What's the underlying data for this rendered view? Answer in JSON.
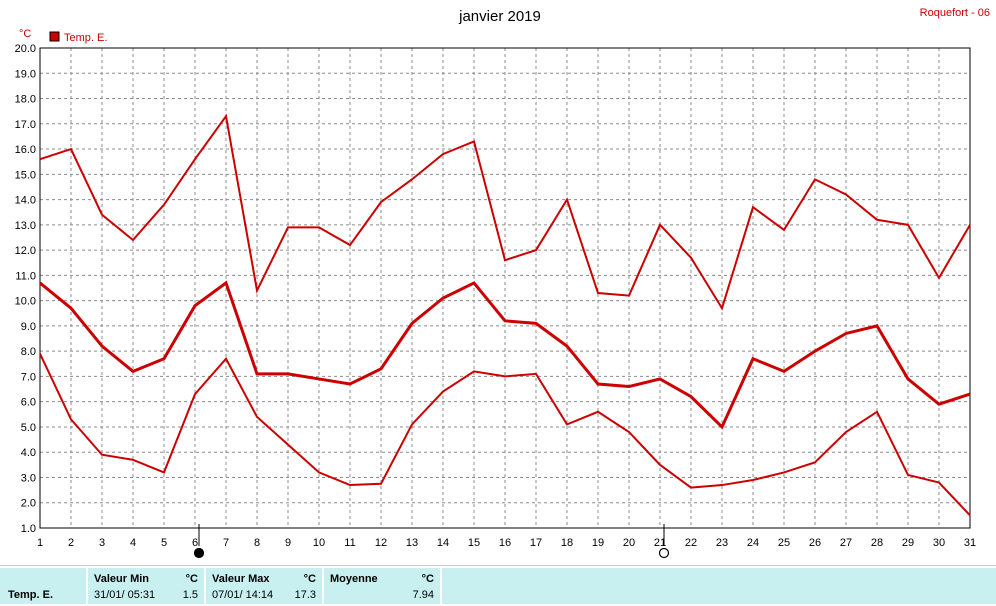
{
  "header": {
    "title": "janvier 2019",
    "station": "Roquefort - 06"
  },
  "chart_data": {
    "type": "line",
    "title": "janvier 2019",
    "ylabel": "°C",
    "ylim": [
      1.0,
      20.0
    ],
    "y_ticks": [
      "1.0",
      "2.0",
      "3.0",
      "4.0",
      "5.0",
      "6.0",
      "7.0",
      "8.0",
      "9.0",
      "10.0",
      "11.0",
      "12.0",
      "13.0",
      "14.0",
      "15.0",
      "16.0",
      "17.0",
      "18.0",
      "19.0",
      "20.0"
    ],
    "x": [
      1,
      2,
      3,
      4,
      5,
      6,
      7,
      8,
      9,
      10,
      11,
      12,
      13,
      14,
      15,
      16,
      17,
      18,
      19,
      20,
      21,
      22,
      23,
      24,
      25,
      26,
      27,
      28,
      29,
      30,
      31
    ],
    "grid": true,
    "legend": {
      "label": "Temp. E.",
      "placement": "top-left"
    },
    "series": [
      {
        "role": "max",
        "values": [
          15.6,
          16.0,
          13.4,
          12.4,
          13.8,
          15.6,
          17.3,
          10.4,
          12.9,
          12.9,
          12.2,
          13.9,
          14.8,
          15.8,
          16.3,
          11.6,
          12.0,
          14.0,
          10.3,
          10.2,
          13.0,
          11.7,
          9.7,
          13.7,
          12.8,
          14.8,
          14.2,
          13.2,
          13.0,
          10.9,
          13.0
        ]
      },
      {
        "role": "mean",
        "values": [
          10.7,
          9.7,
          8.2,
          7.2,
          7.7,
          9.8,
          10.7,
          7.1,
          7.1,
          6.9,
          6.7,
          7.3,
          9.1,
          10.1,
          10.7,
          9.2,
          9.1,
          8.2,
          6.7,
          6.6,
          6.9,
          6.2,
          5.0,
          7.7,
          7.2,
          8.0,
          8.7,
          9.0,
          6.9,
          5.9,
          6.3
        ]
      },
      {
        "role": "min",
        "values": [
          7.9,
          5.3,
          3.9,
          3.7,
          3.2,
          6.3,
          7.7,
          5.4,
          4.3,
          3.2,
          2.7,
          2.75,
          5.1,
          6.4,
          7.2,
          7.0,
          7.1,
          5.1,
          5.6,
          4.8,
          3.5,
          2.6,
          2.7,
          2.9,
          3.2,
          3.6,
          4.8,
          5.6,
          3.1,
          2.8,
          1.5
        ]
      }
    ],
    "moon_markers": [
      {
        "day": 6,
        "phase": "new-moon"
      },
      {
        "day": 21,
        "phase": "full-moon"
      }
    ],
    "colors": {
      "series": "#cc0000",
      "grid": "#8c8c8c",
      "footer_bg": "#c8f0f0"
    }
  },
  "footer": {
    "label": "Temp. E.",
    "min": {
      "header": "Valeur Min",
      "unit": "°C",
      "time": "31/01/ 05:31",
      "value": "1.5"
    },
    "max": {
      "header": "Valeur Max",
      "unit": "°C",
      "time": "07/01/ 14:14",
      "value": "17.3"
    },
    "avg": {
      "header": "Moyenne",
      "unit": "°C",
      "value": "7.94"
    }
  }
}
